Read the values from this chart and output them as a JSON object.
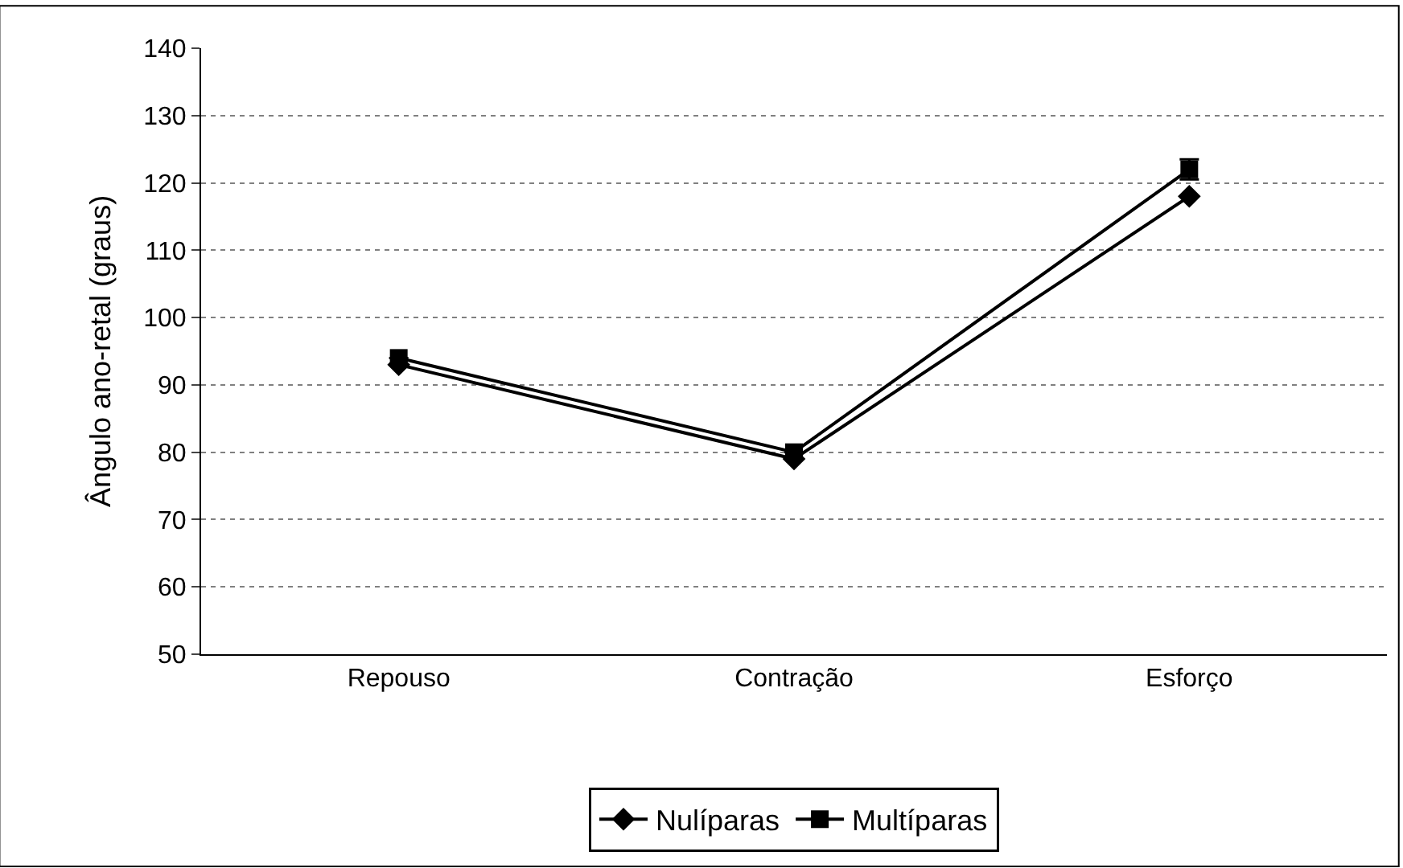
{
  "chart_data": {
    "type": "line",
    "ylabel": "Ângulo ano-retal (graus)",
    "categories": [
      "Repouso",
      "Contração",
      "Esforço"
    ],
    "series": [
      {
        "name": "Nulíparas",
        "color": "#000000",
        "values": [
          93,
          79,
          118
        ],
        "marker": "diamond"
      },
      {
        "name": "Multíparas",
        "color": "#000000",
        "values": [
          94,
          80,
          122
        ],
        "marker": "square",
        "errors": [
          null,
          null,
          1.5
        ]
      }
    ],
    "ylim": [
      50,
      140
    ],
    "yticks": [
      50,
      60,
      70,
      80,
      90,
      100,
      110,
      120,
      130,
      140
    ],
    "grid": "y",
    "legend": "bottom",
    "line_style": "solid"
  }
}
